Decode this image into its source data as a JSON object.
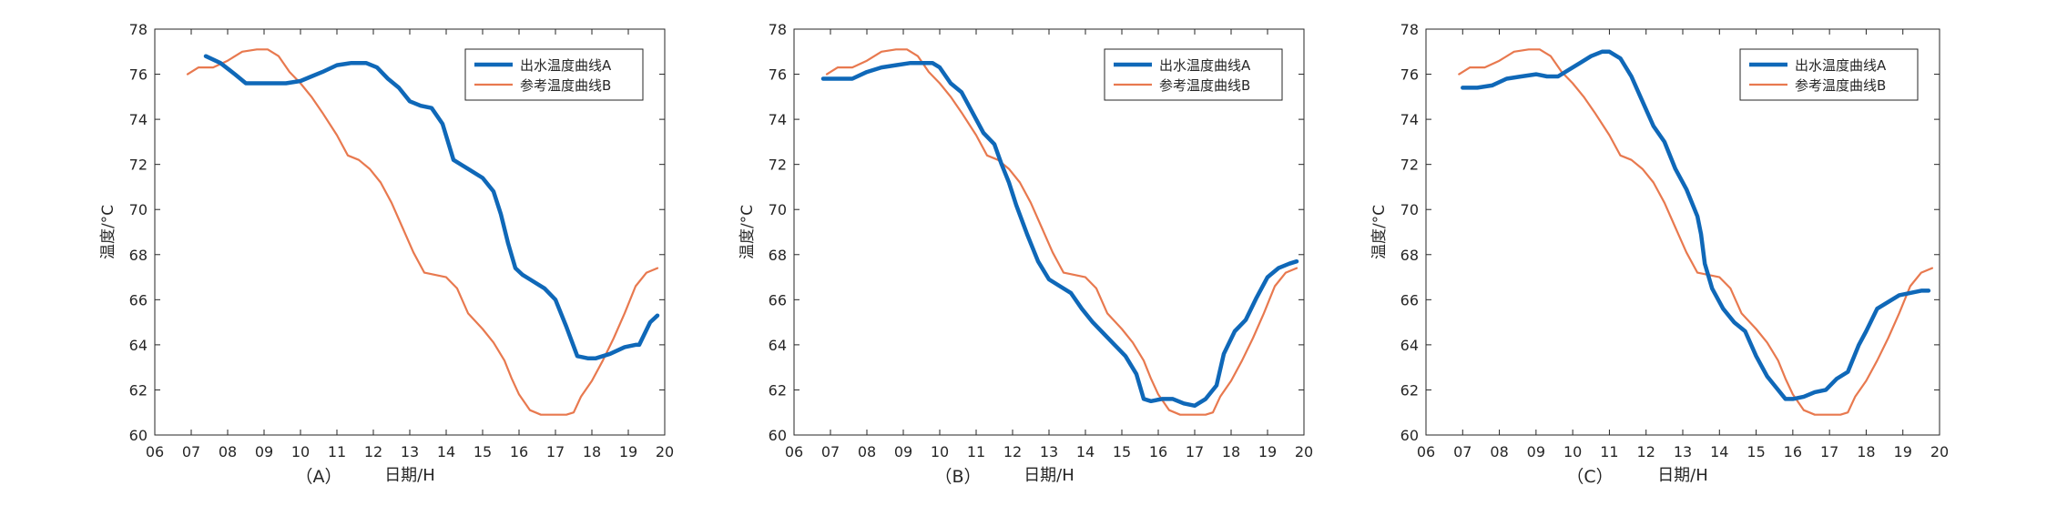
{
  "colors": {
    "series_a": "#0f68b8",
    "series_b": "#e8794f",
    "axes": "#262626"
  },
  "chart_data": [
    {
      "type": "line",
      "panel_label": "（A）",
      "xlabel": "日期/H",
      "ylabel": "温度/°C",
      "xlim": [
        6,
        20
      ],
      "ylim": [
        60,
        78
      ],
      "x_ticks": [
        "06",
        "07",
        "08",
        "09",
        "10",
        "11",
        "12",
        "13",
        "14",
        "15",
        "16",
        "17",
        "18",
        "19",
        "20"
      ],
      "y_ticks": [
        "60",
        "62",
        "64",
        "66",
        "68",
        "70",
        "72",
        "74",
        "76",
        "78"
      ],
      "grid": false,
      "legend_position": "top-right",
      "series": [
        {
          "name": "出水温度曲线A",
          "x": [
            7.4,
            7.8,
            8.2,
            8.5,
            8.8,
            9.2,
            9.6,
            10.0,
            10.3,
            10.6,
            11.0,
            11.4,
            11.8,
            12.1,
            12.4,
            12.7,
            13.0,
            13.3,
            13.6,
            13.9,
            14.2,
            14.6,
            15.0,
            15.3,
            15.5,
            15.7,
            15.9,
            16.1,
            16.3,
            16.7,
            17.0,
            17.3,
            17.6,
            17.9,
            18.1,
            18.5,
            18.9,
            19.2,
            19.3,
            19.6,
            19.8
          ],
          "y": [
            76.8,
            76.5,
            76.0,
            75.6,
            75.6,
            75.6,
            75.6,
            75.7,
            75.9,
            76.1,
            76.4,
            76.5,
            76.5,
            76.3,
            75.8,
            75.4,
            74.8,
            74.6,
            74.5,
            73.8,
            72.2,
            71.8,
            71.4,
            70.8,
            69.8,
            68.5,
            67.4,
            67.1,
            66.9,
            66.5,
            66.0,
            64.8,
            63.5,
            63.4,
            63.4,
            63.6,
            63.9,
            64.0,
            64.0,
            65.0,
            65.3
          ]
        },
        {
          "name": "参考温度曲线B",
          "x": [
            6.9,
            7.2,
            7.6,
            8.0,
            8.4,
            8.8,
            9.1,
            9.4,
            9.7,
            10.0,
            10.3,
            10.6,
            11.0,
            11.3,
            11.6,
            11.9,
            12.2,
            12.5,
            12.8,
            13.1,
            13.4,
            13.7,
            14.0,
            14.3,
            14.6,
            15.0,
            15.3,
            15.6,
            15.8,
            16.0,
            16.3,
            16.6,
            16.9,
            17.1,
            17.3,
            17.5,
            17.7,
            18.0,
            18.3,
            18.6,
            18.9,
            19.2,
            19.5,
            19.8
          ],
          "y": [
            76.0,
            76.3,
            76.3,
            76.6,
            77.0,
            77.1,
            77.1,
            76.8,
            76.1,
            75.6,
            75.0,
            74.3,
            73.3,
            72.4,
            72.2,
            71.8,
            71.2,
            70.3,
            69.2,
            68.1,
            67.2,
            67.1,
            67.0,
            66.5,
            65.4,
            64.7,
            64.1,
            63.3,
            62.5,
            61.8,
            61.1,
            60.9,
            60.9,
            60.9,
            60.9,
            61.0,
            61.7,
            62.4,
            63.3,
            64.3,
            65.4,
            66.6,
            67.2,
            67.4
          ]
        }
      ]
    },
    {
      "type": "line",
      "panel_label": "（B）",
      "xlabel": "日期/H",
      "ylabel": "温度/°C",
      "xlim": [
        6,
        20
      ],
      "ylim": [
        60,
        78
      ],
      "x_ticks": [
        "06",
        "07",
        "08",
        "09",
        "10",
        "11",
        "12",
        "13",
        "14",
        "15",
        "16",
        "17",
        "18",
        "19",
        "20"
      ],
      "y_ticks": [
        "60",
        "62",
        "64",
        "66",
        "68",
        "70",
        "72",
        "74",
        "76",
        "78"
      ],
      "grid": false,
      "legend_position": "top-right",
      "series": [
        {
          "name": "出水温度曲线A",
          "x": [
            6.8,
            7.2,
            7.6,
            8.0,
            8.4,
            8.8,
            9.2,
            9.6,
            9.8,
            10.0,
            10.3,
            10.6,
            10.9,
            11.2,
            11.5,
            11.7,
            11.9,
            12.1,
            12.4,
            12.7,
            13.0,
            13.3,
            13.6,
            13.9,
            14.2,
            14.5,
            14.8,
            15.1,
            15.4,
            15.6,
            15.8,
            16.1,
            16.4,
            16.7,
            17.0,
            17.3,
            17.6,
            17.8,
            18.1,
            18.4,
            18.7,
            19.0,
            19.3,
            19.6,
            19.8
          ],
          "y": [
            75.8,
            75.8,
            75.8,
            76.1,
            76.3,
            76.4,
            76.5,
            76.5,
            76.5,
            76.3,
            75.6,
            75.2,
            74.3,
            73.4,
            72.9,
            72.0,
            71.2,
            70.2,
            68.9,
            67.7,
            66.9,
            66.6,
            66.3,
            65.6,
            65.0,
            64.5,
            64.0,
            63.5,
            62.7,
            61.6,
            61.5,
            61.6,
            61.6,
            61.4,
            61.3,
            61.6,
            62.2,
            63.6,
            64.6,
            65.1,
            66.1,
            67.0,
            67.4,
            67.6,
            67.7
          ]
        },
        {
          "name": "参考温度曲线B",
          "x": [
            6.9,
            7.2,
            7.6,
            8.0,
            8.4,
            8.8,
            9.1,
            9.4,
            9.7,
            10.0,
            10.3,
            10.6,
            11.0,
            11.3,
            11.6,
            11.9,
            12.2,
            12.5,
            12.8,
            13.1,
            13.4,
            13.7,
            14.0,
            14.3,
            14.6,
            15.0,
            15.3,
            15.6,
            15.8,
            16.0,
            16.3,
            16.6,
            16.9,
            17.1,
            17.3,
            17.5,
            17.7,
            18.0,
            18.3,
            18.6,
            18.9,
            19.2,
            19.5,
            19.8
          ],
          "y": [
            76.0,
            76.3,
            76.3,
            76.6,
            77.0,
            77.1,
            77.1,
            76.8,
            76.1,
            75.6,
            75.0,
            74.3,
            73.3,
            72.4,
            72.2,
            71.8,
            71.2,
            70.3,
            69.2,
            68.1,
            67.2,
            67.1,
            67.0,
            66.5,
            65.4,
            64.7,
            64.1,
            63.3,
            62.5,
            61.8,
            61.1,
            60.9,
            60.9,
            60.9,
            60.9,
            61.0,
            61.7,
            62.4,
            63.3,
            64.3,
            65.4,
            66.6,
            67.2,
            67.4
          ]
        }
      ]
    },
    {
      "type": "line",
      "panel_label": "（C）",
      "xlabel": "日期/H",
      "ylabel": "温度/°C",
      "xlim": [
        6,
        20
      ],
      "ylim": [
        60,
        78
      ],
      "x_ticks": [
        "06",
        "07",
        "08",
        "09",
        "10",
        "11",
        "12",
        "13",
        "14",
        "15",
        "16",
        "17",
        "18",
        "19",
        "20"
      ],
      "y_ticks": [
        "60",
        "62",
        "64",
        "66",
        "68",
        "70",
        "72",
        "74",
        "76",
        "78"
      ],
      "grid": false,
      "legend_position": "top-right",
      "series": [
        {
          "name": "出水温度曲线A",
          "x": [
            7.0,
            7.4,
            7.8,
            8.2,
            8.6,
            9.0,
            9.3,
            9.6,
            9.9,
            10.2,
            10.5,
            10.8,
            11.0,
            11.3,
            11.6,
            11.9,
            12.2,
            12.5,
            12.8,
            13.1,
            13.4,
            13.5,
            13.6,
            13.8,
            14.1,
            14.4,
            14.7,
            15.0,
            15.3,
            15.5,
            15.8,
            16.0,
            16.3,
            16.6,
            16.9,
            17.2,
            17.5,
            17.8,
            18.0,
            18.3,
            18.6,
            18.9,
            19.2,
            19.5,
            19.7
          ],
          "y": [
            75.4,
            75.4,
            75.5,
            75.8,
            75.9,
            76.0,
            75.9,
            75.9,
            76.2,
            76.5,
            76.8,
            77.0,
            77.0,
            76.7,
            75.9,
            74.8,
            73.7,
            73.0,
            71.8,
            70.9,
            69.7,
            68.9,
            67.6,
            66.5,
            65.6,
            65.0,
            64.6,
            63.5,
            62.6,
            62.2,
            61.6,
            61.6,
            61.7,
            61.9,
            62.0,
            62.5,
            62.8,
            64.0,
            64.6,
            65.6,
            65.9,
            66.2,
            66.3,
            66.4,
            66.4
          ]
        },
        {
          "name": "参考温度曲线B",
          "x": [
            6.9,
            7.2,
            7.6,
            8.0,
            8.4,
            8.8,
            9.1,
            9.4,
            9.7,
            10.0,
            10.3,
            10.6,
            11.0,
            11.3,
            11.6,
            11.9,
            12.2,
            12.5,
            12.8,
            13.1,
            13.4,
            13.7,
            14.0,
            14.3,
            14.6,
            15.0,
            15.3,
            15.6,
            15.8,
            16.0,
            16.3,
            16.6,
            16.9,
            17.1,
            17.3,
            17.5,
            17.7,
            18.0,
            18.3,
            18.6,
            18.9,
            19.2,
            19.5,
            19.8
          ],
          "y": [
            76.0,
            76.3,
            76.3,
            76.6,
            77.0,
            77.1,
            77.1,
            76.8,
            76.1,
            75.6,
            75.0,
            74.3,
            73.3,
            72.4,
            72.2,
            71.8,
            71.2,
            70.3,
            69.2,
            68.1,
            67.2,
            67.1,
            67.0,
            66.5,
            65.4,
            64.7,
            64.1,
            63.3,
            62.5,
            61.8,
            61.1,
            60.9,
            60.9,
            60.9,
            60.9,
            61.0,
            61.7,
            62.4,
            63.3,
            64.3,
            65.4,
            66.6,
            67.2,
            67.4
          ]
        }
      ]
    }
  ]
}
